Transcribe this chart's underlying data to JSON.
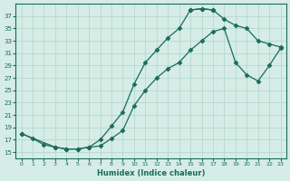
{
  "xlabel": "Humidex (Indice chaleur)",
  "background_color": "#d5ede6",
  "grid_color": "#b0d4c8",
  "line_color": "#1a6b5a",
  "xlim": [
    -0.5,
    23.5
  ],
  "ylim": [
    14.0,
    39.0
  ],
  "yticks": [
    15,
    17,
    19,
    21,
    23,
    25,
    27,
    29,
    31,
    33,
    35,
    37
  ],
  "xticks": [
    0,
    1,
    2,
    3,
    4,
    5,
    6,
    7,
    8,
    9,
    10,
    11,
    12,
    13,
    14,
    15,
    16,
    17,
    18,
    19,
    20,
    21,
    22,
    23
  ],
  "line_upper_x": [
    0,
    1,
    2,
    3,
    4,
    5,
    6,
    7,
    8,
    9,
    10,
    11,
    12,
    13,
    14,
    15,
    16,
    17
  ],
  "line_upper_y": [
    18.0,
    17.2,
    16.2,
    15.8,
    15.5,
    15.5,
    15.8,
    17.0,
    19.2,
    21.5,
    26.0,
    29.5,
    31.5,
    33.5,
    35.0,
    38.0,
    38.2,
    38.0
  ],
  "line_top_x": [
    15,
    16,
    17,
    18,
    19,
    20,
    21,
    22,
    23
  ],
  "line_top_y": [
    38.0,
    38.2,
    38.0,
    36.5,
    35.5,
    35.0,
    33.0,
    32.5,
    32.0
  ],
  "line_lower_x": [
    0,
    3,
    4,
    5,
    6,
    7,
    8,
    9,
    10,
    11,
    12,
    13,
    14,
    15,
    16,
    17,
    18,
    19,
    20,
    21,
    22,
    23
  ],
  "line_lower_y": [
    18.0,
    15.8,
    15.5,
    15.5,
    15.8,
    16.0,
    17.2,
    18.5,
    22.5,
    25.0,
    27.0,
    28.5,
    29.5,
    31.5,
    33.0,
    34.5,
    35.0,
    29.5,
    27.5,
    26.5,
    29.0,
    31.8
  ]
}
